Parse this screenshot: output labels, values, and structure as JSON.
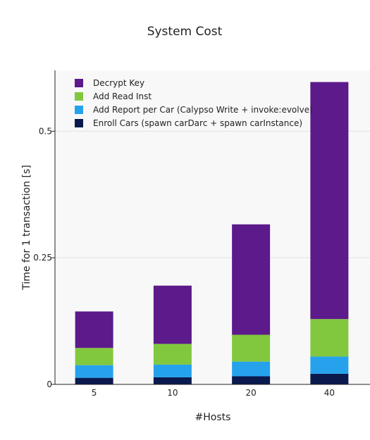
{
  "chart_data": {
    "type": "bar",
    "stacked": true,
    "title": "System Cost",
    "xlabel": "#Hosts",
    "ylabel": "Time for 1 transaction [s]",
    "categories": [
      "5",
      "10",
      "20",
      "40"
    ],
    "ylim": [
      0,
      0.62
    ],
    "yticks": [
      0,
      0.25,
      0.5
    ],
    "ytick_labels": [
      "0",
      "0.25",
      "0.5"
    ],
    "grid": true,
    "legend_position": "top-left",
    "series": [
      {
        "name": "Enroll Cars (spawn carDarc + spawn carInstance)",
        "color": "#0b1a4d",
        "values": [
          0.013,
          0.014,
          0.016,
          0.021
        ]
      },
      {
        "name": "Add Report per Car (Calypso Write + invoke:evolve)",
        "color": "#26a2ed",
        "values": [
          0.025,
          0.025,
          0.029,
          0.034
        ]
      },
      {
        "name": "Add Read Inst",
        "color": "#82c83f",
        "values": [
          0.034,
          0.041,
          0.053,
          0.074
        ]
      },
      {
        "name": "Decrypt Key",
        "color": "#5c1a8a",
        "values": [
          0.072,
          0.115,
          0.218,
          0.468
        ]
      }
    ]
  }
}
